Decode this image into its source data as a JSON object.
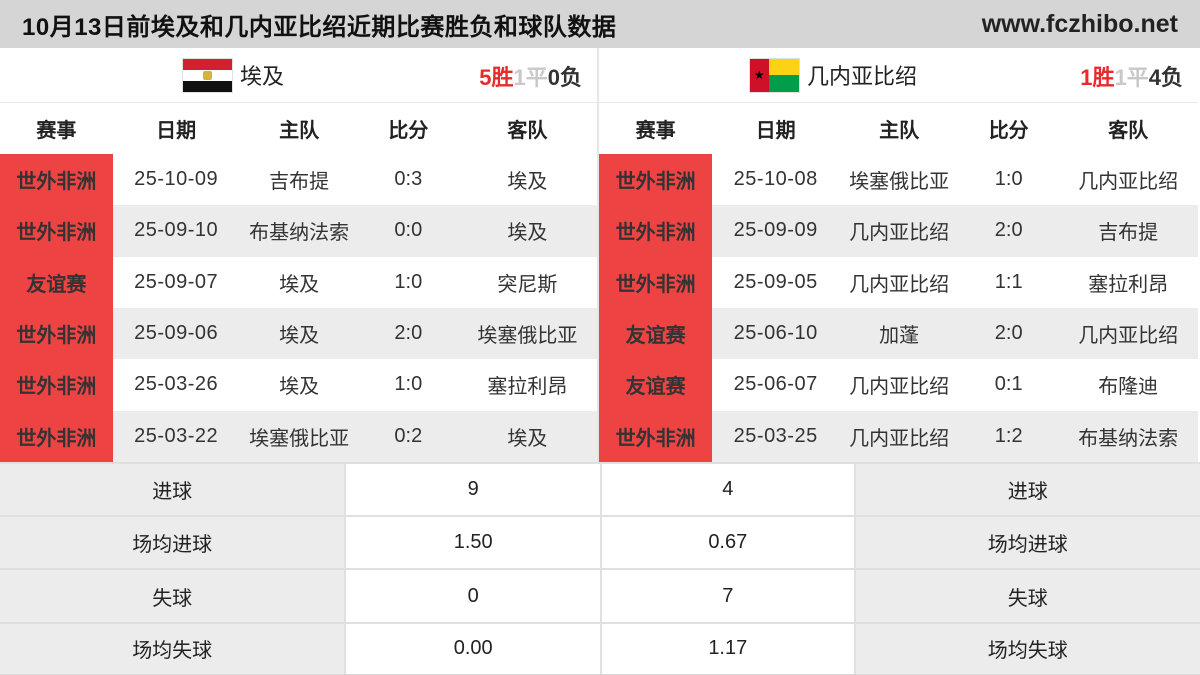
{
  "header": {
    "title": "10月13日前埃及和几内亚比绍近期比赛胜负和球队数据",
    "site": "www.fczhibo.net"
  },
  "columns": {
    "competition": "赛事",
    "date": "日期",
    "home": "主队",
    "score": "比分",
    "away": "客队"
  },
  "colors": {
    "badge_red": "#ee4343",
    "win_red": "#e62b2b",
    "draw_gray": "#c8c8c8",
    "header_gray": "#d5d5d5",
    "row_alt_gray": "#ececec"
  },
  "teams": [
    {
      "name": "埃及",
      "flag": "egypt-flag",
      "record": {
        "wins": "5胜",
        "draws": "1平",
        "losses": "0负"
      },
      "matches": [
        {
          "comp": "世外非洲",
          "date": "25-10-09",
          "home": "吉布提",
          "score": "0:3",
          "away": "埃及"
        },
        {
          "comp": "世外非洲",
          "date": "25-09-10",
          "home": "布基纳法索",
          "score": "0:0",
          "away": "埃及"
        },
        {
          "comp": "友谊赛",
          "date": "25-09-07",
          "home": "埃及",
          "score": "1:0",
          "away": "突尼斯"
        },
        {
          "comp": "世外非洲",
          "date": "25-09-06",
          "home": "埃及",
          "score": "2:0",
          "away": "埃塞俄比亚"
        },
        {
          "comp": "世外非洲",
          "date": "25-03-26",
          "home": "埃及",
          "score": "1:0",
          "away": "塞拉利昂"
        },
        {
          "comp": "世外非洲",
          "date": "25-03-22",
          "home": "埃塞俄比亚",
          "score": "0:2",
          "away": "埃及"
        }
      ]
    },
    {
      "name": "几内亚比绍",
      "flag": "guinea-bissau-flag",
      "record": {
        "wins": "1胜",
        "draws": "1平",
        "losses": "4负"
      },
      "matches": [
        {
          "comp": "世外非洲",
          "date": "25-10-08",
          "home": "埃塞俄比亚",
          "score": "1:0",
          "away": "几内亚比绍"
        },
        {
          "comp": "世外非洲",
          "date": "25-09-09",
          "home": "几内亚比绍",
          "score": "2:0",
          "away": "吉布提"
        },
        {
          "comp": "世外非洲",
          "date": "25-09-05",
          "home": "几内亚比绍",
          "score": "1:1",
          "away": "塞拉利昂"
        },
        {
          "comp": "友谊赛",
          "date": "25-06-10",
          "home": "加蓬",
          "score": "2:0",
          "away": "几内亚比绍"
        },
        {
          "comp": "友谊赛",
          "date": "25-06-07",
          "home": "几内亚比绍",
          "score": "0:1",
          "away": "布隆迪"
        },
        {
          "comp": "世外非洲",
          "date": "25-03-25",
          "home": "几内亚比绍",
          "score": "1:2",
          "away": "布基纳法索"
        }
      ]
    }
  ],
  "stats": {
    "rows": [
      {
        "label": "进球",
        "left": "9",
        "right": "4"
      },
      {
        "label": "场均进球",
        "left": "1.50",
        "right": "0.67"
      },
      {
        "label": "失球",
        "left": "0",
        "right": "7"
      },
      {
        "label": "场均失球",
        "left": "0.00",
        "right": "1.17"
      }
    ]
  }
}
